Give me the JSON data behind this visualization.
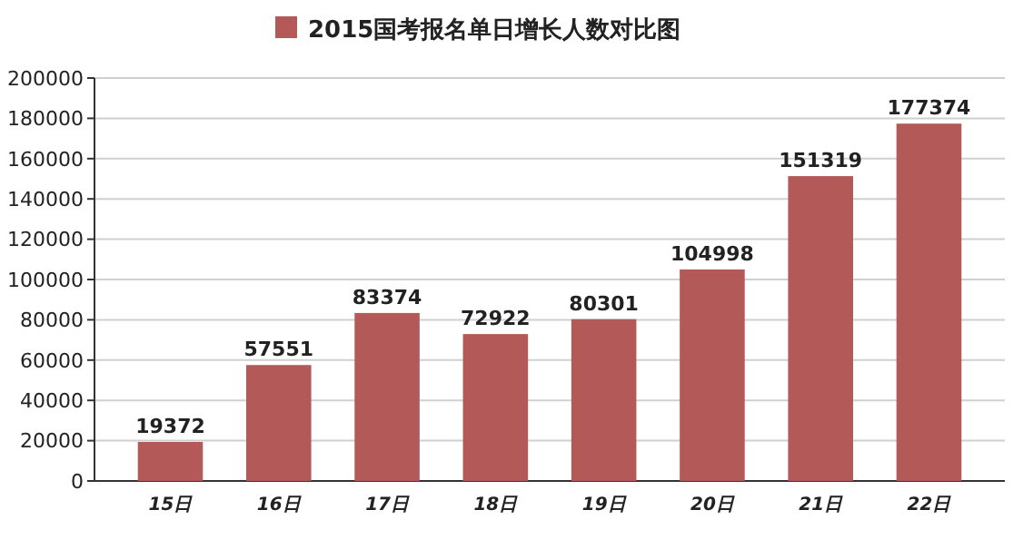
{
  "chart_data": {
    "type": "bar",
    "categories": [
      "15日",
      "16日",
      "17日",
      "18日",
      "19日",
      "20日",
      "21日",
      "22日"
    ],
    "series": [
      {
        "name": "2015国考报名单日增长人数对比图",
        "color": "#b35a59",
        "values": [
          19372,
          57551,
          83374,
          72922,
          80301,
          104998,
          151319,
          177374
        ]
      }
    ],
    "ylim": [
      0,
      200000
    ],
    "yticks": [
      0,
      20000,
      40000,
      60000,
      80000,
      100000,
      120000,
      140000,
      160000,
      180000,
      200000
    ],
    "grid": "y",
    "legend": "top",
    "data_labels": true
  }
}
